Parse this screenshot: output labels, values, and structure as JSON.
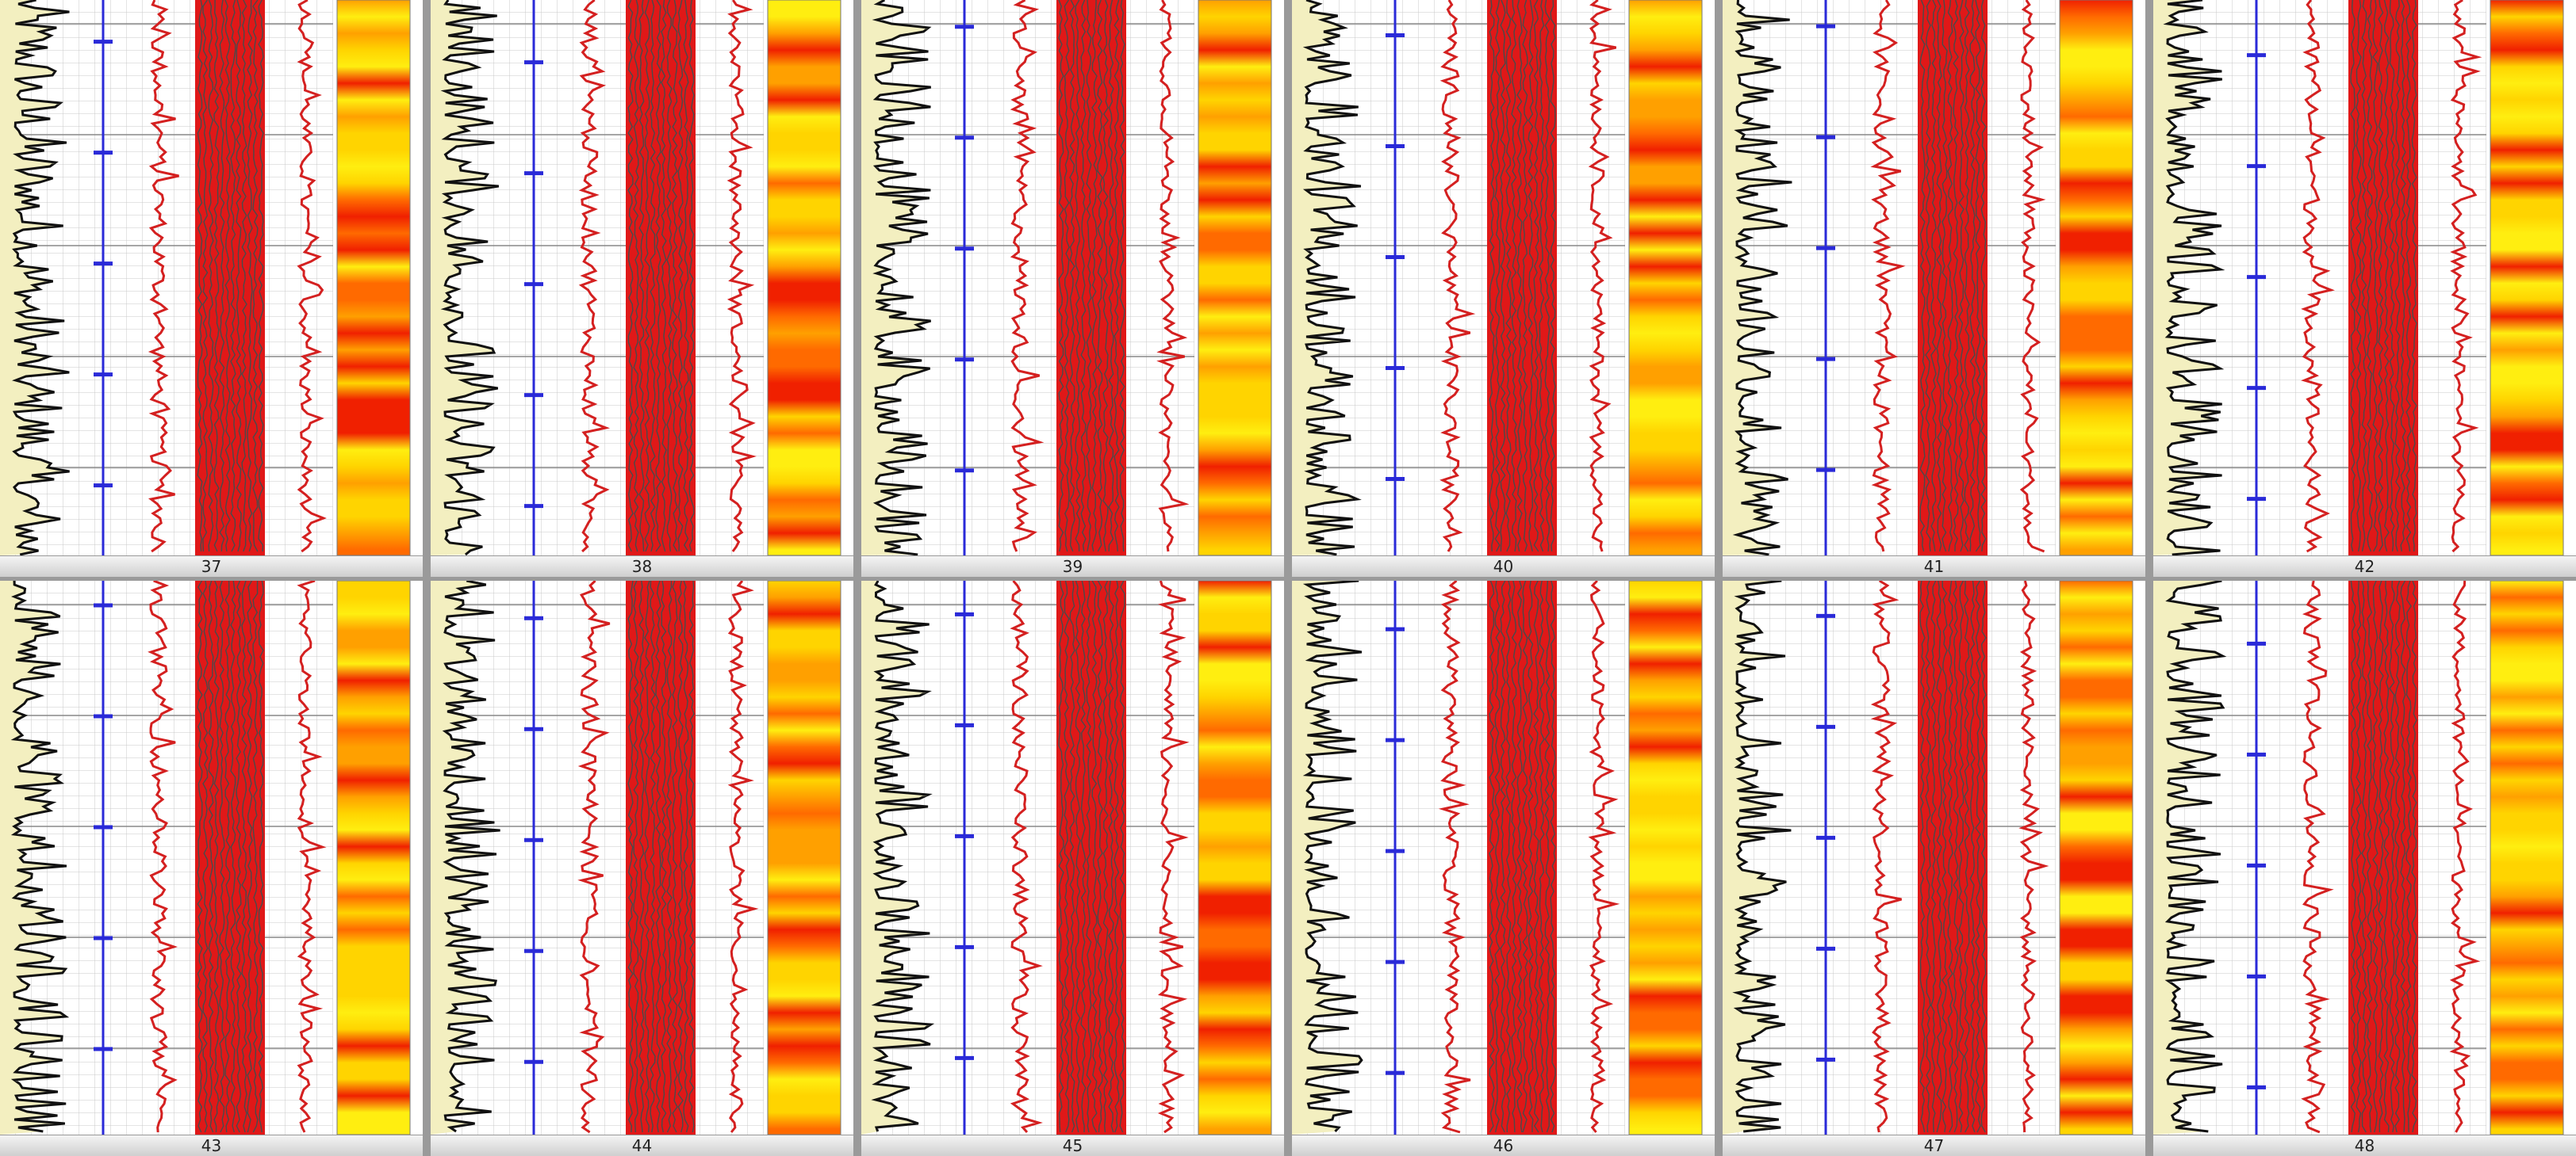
{
  "panels": [
    {
      "label": "37"
    },
    {
      "label": "38"
    },
    {
      "label": "39"
    },
    {
      "label": "40"
    },
    {
      "label": "41"
    },
    {
      "label": "42"
    },
    {
      "label": "43"
    },
    {
      "label": "44"
    },
    {
      "label": "45"
    },
    {
      "label": "46"
    },
    {
      "label": "47"
    },
    {
      "label": "48"
    }
  ]
}
